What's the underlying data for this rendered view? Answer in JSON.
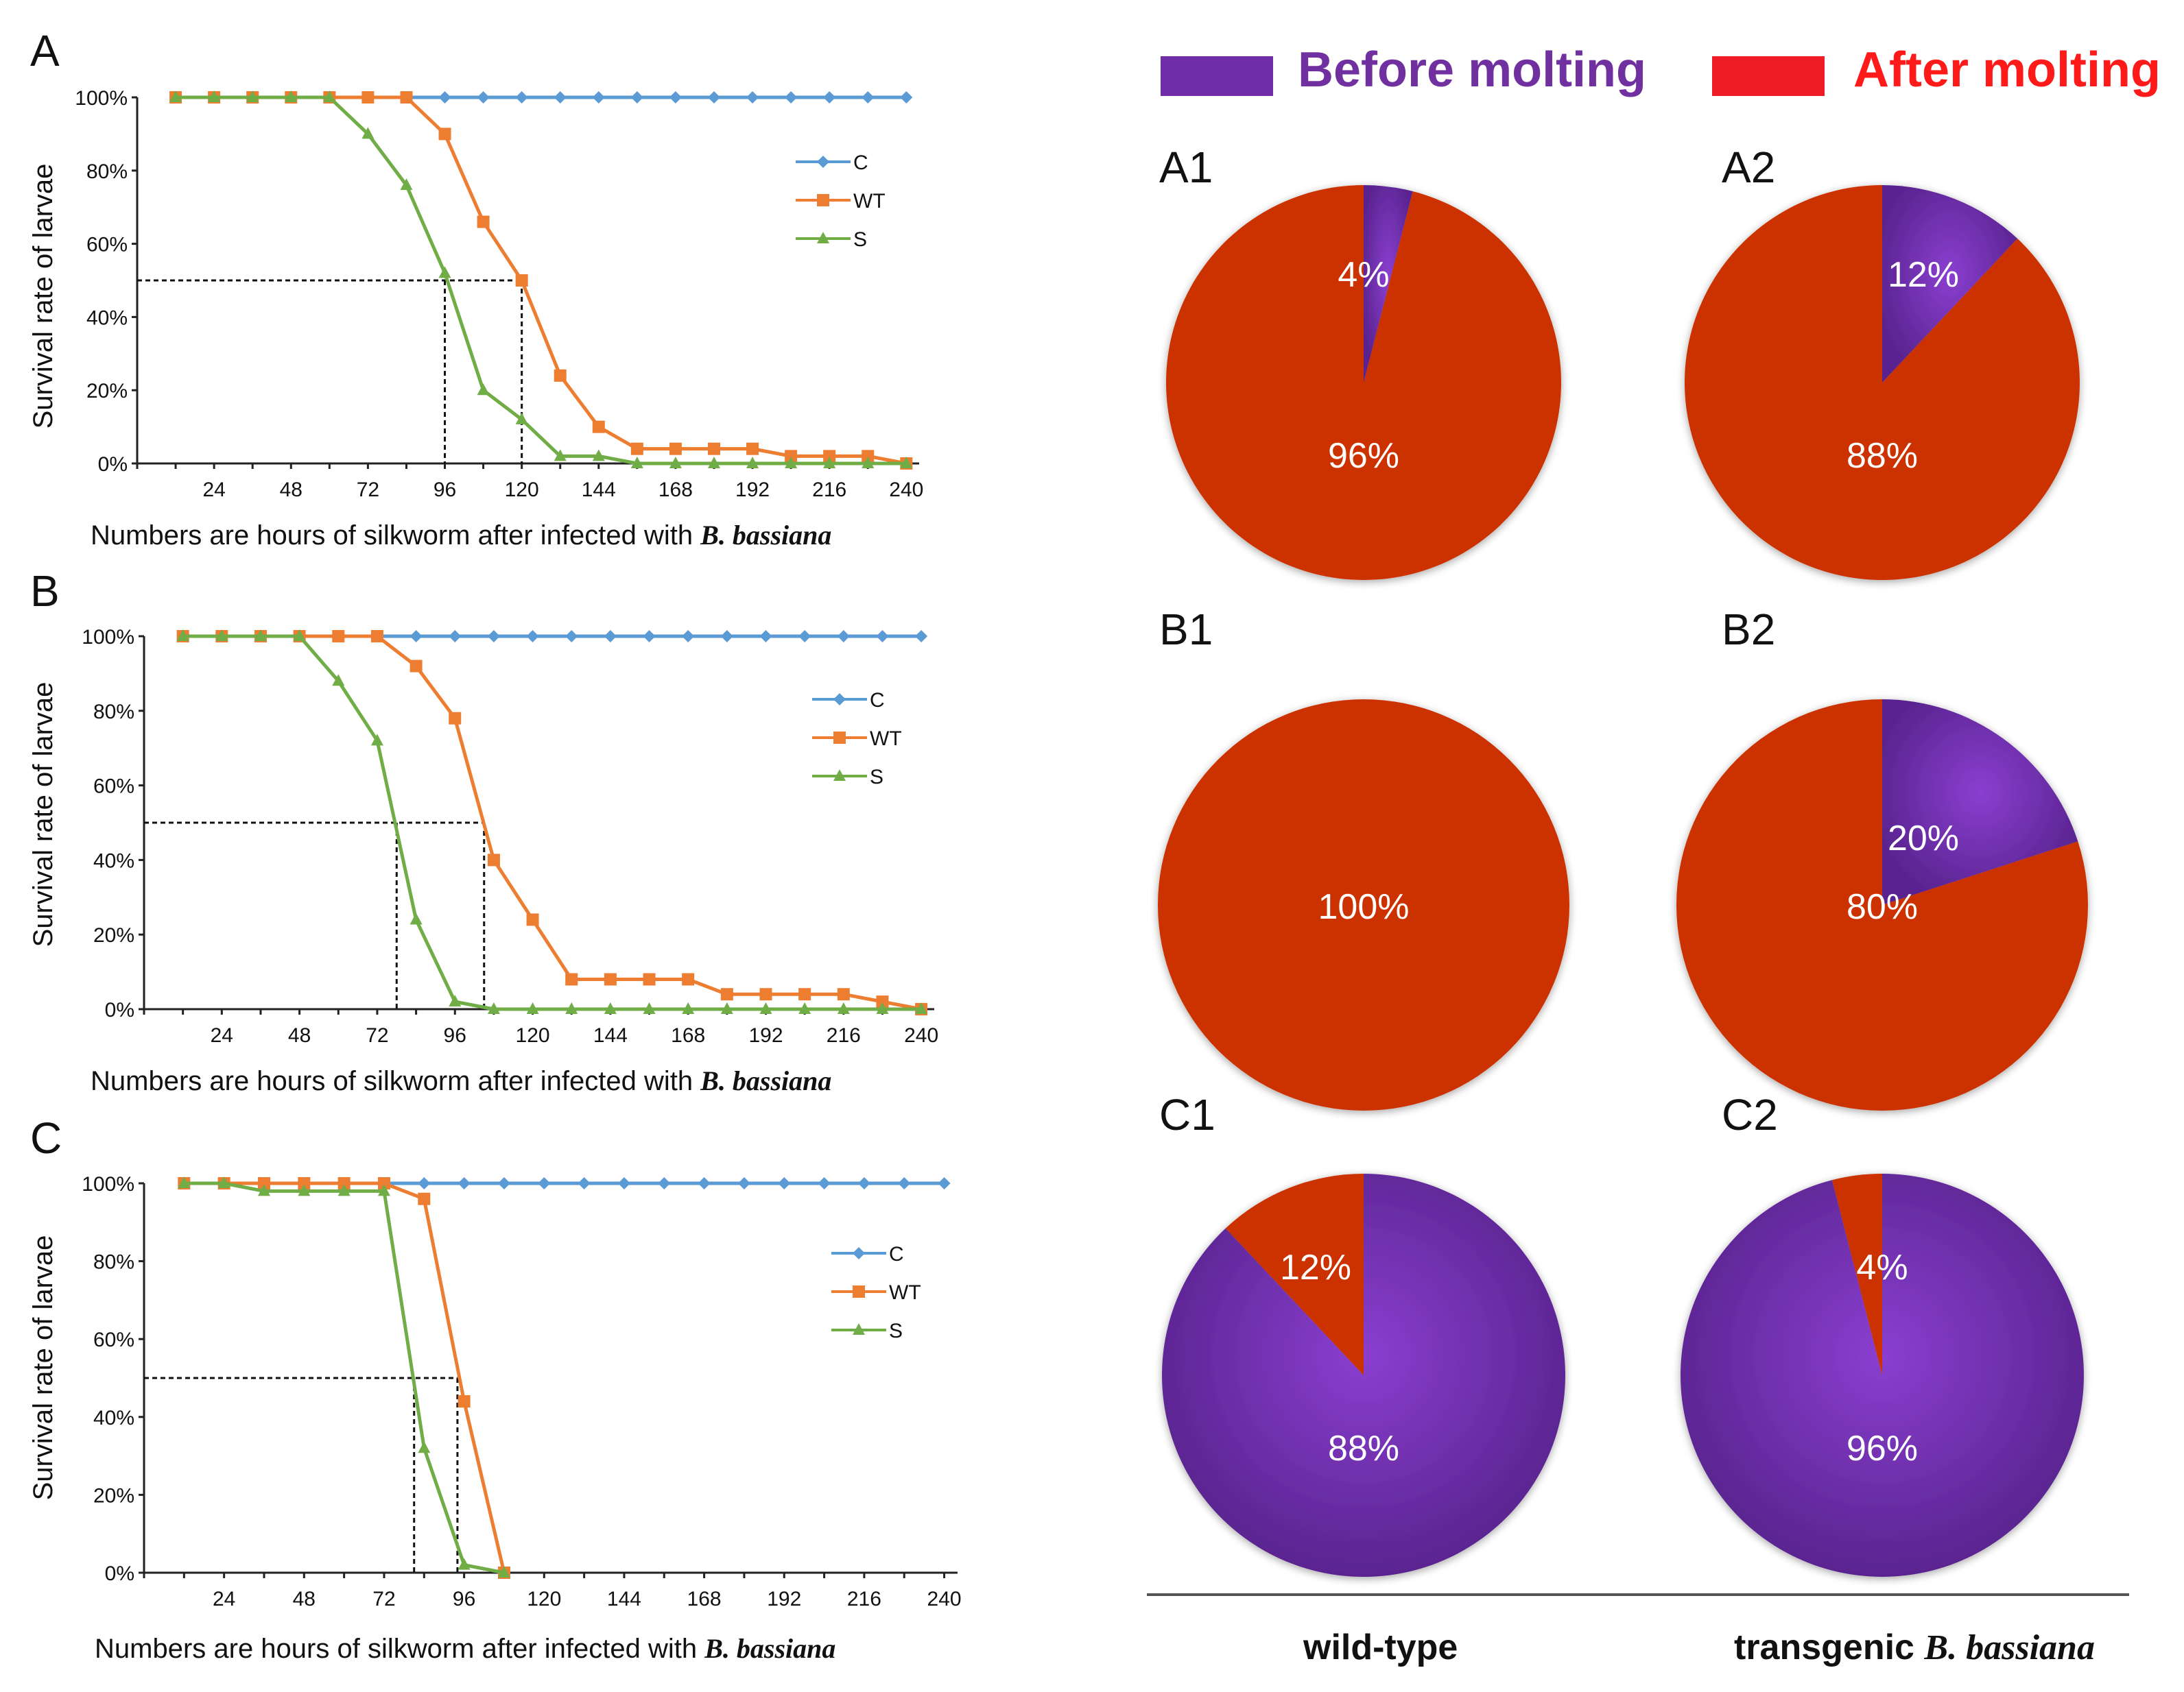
{
  "colors": {
    "C": "#5b9bd5",
    "WT": "#ed7d31",
    "S": "#70ad47",
    "before": "#6f2da8",
    "after": "#cc3300",
    "before_text": "#7030a0",
    "after_text": "#ff1a1a"
  },
  "legend_top": {
    "before": "Before molting",
    "after": "After molting"
  },
  "bottom": {
    "left": "wild-type",
    "right_plain": "transgenic ",
    "right_italic": "B. bassiana"
  },
  "chart_data": [
    {
      "type": "line",
      "panel": "A",
      "xlabel_plain": "Numbers are hours of silkworm after infected with ",
      "xlabel_italic": "B. bassiana",
      "ylabel": "Survival rate of larvae",
      "x_ticks": [
        "24",
        "48",
        "72",
        "96",
        "120",
        "144",
        "168",
        "192",
        "216",
        "240"
      ],
      "y_ticks": [
        "0%",
        "20%",
        "40%",
        "60%",
        "80%",
        "100%"
      ],
      "xlim": [
        0,
        244
      ],
      "ylim": [
        0,
        100
      ],
      "x": [
        12,
        24,
        36,
        48,
        60,
        72,
        84,
        96,
        108,
        120,
        132,
        144,
        156,
        168,
        180,
        192,
        204,
        216,
        228,
        240
      ],
      "series": [
        {
          "name": "C",
          "values": [
            100,
            100,
            100,
            100,
            100,
            100,
            100,
            100,
            100,
            100,
            100,
            100,
            100,
            100,
            100,
            100,
            100,
            100,
            100,
            100
          ]
        },
        {
          "name": "WT",
          "values": [
            100,
            100,
            100,
            100,
            100,
            100,
            100,
            90,
            66,
            50,
            24,
            10,
            4,
            4,
            4,
            4,
            2,
            2,
            2,
            0
          ]
        },
        {
          "name": "S",
          "values": [
            100,
            100,
            100,
            100,
            100,
            90,
            76,
            52,
            20,
            12,
            2,
            2,
            0,
            0,
            0,
            0,
            0,
            0,
            0,
            0
          ]
        }
      ],
      "lt50": [
        {
          "x": 96,
          "y": 50
        },
        {
          "x": 120,
          "y": 50
        }
      ]
    },
    {
      "type": "line",
      "panel": "B",
      "xlabel_plain": "Numbers are hours of silkworm after infected with ",
      "xlabel_italic": "B. bassiana",
      "ylabel": "Survival rate of larvae",
      "x_ticks": [
        "24",
        "48",
        "72",
        "96",
        "120",
        "144",
        "168",
        "192",
        "216",
        "240"
      ],
      "y_ticks": [
        "0%",
        "20%",
        "40%",
        "60%",
        "80%",
        "100%"
      ],
      "xlim": [
        0,
        244
      ],
      "ylim": [
        0,
        100
      ],
      "x": [
        12,
        24,
        36,
        48,
        60,
        72,
        84,
        96,
        108,
        120,
        132,
        144,
        156,
        168,
        180,
        192,
        204,
        216,
        228,
        240
      ],
      "series": [
        {
          "name": "C",
          "values": [
            100,
            100,
            100,
            100,
            100,
            100,
            100,
            100,
            100,
            100,
            100,
            100,
            100,
            100,
            100,
            100,
            100,
            100,
            100,
            100
          ]
        },
        {
          "name": "WT",
          "values": [
            100,
            100,
            100,
            100,
            100,
            100,
            92,
            78,
            40,
            24,
            8,
            8,
            8,
            8,
            4,
            4,
            4,
            4,
            2,
            0
          ]
        },
        {
          "name": "S",
          "values": [
            100,
            100,
            100,
            100,
            88,
            72,
            24,
            2,
            0,
            0,
            0,
            0,
            0,
            0,
            0,
            0,
            0,
            0,
            0,
            0
          ]
        }
      ],
      "lt50": [
        {
          "x": 78,
          "y": 50
        },
        {
          "x": 105,
          "y": 50
        }
      ]
    },
    {
      "type": "line",
      "panel": "C",
      "xlabel_plain": "Numbers are hours of silkworm after infected with ",
      "xlabel_italic": "B. bassiana",
      "ylabel": "Survival rate of larvae",
      "x_ticks": [
        "24",
        "48",
        "72",
        "96",
        "120",
        "144",
        "168",
        "192",
        "216",
        "240"
      ],
      "y_ticks": [
        "0%",
        "20%",
        "40%",
        "60%",
        "80%",
        "100%"
      ],
      "xlim": [
        0,
        244
      ],
      "ylim": [
        0,
        100
      ],
      "x_C": [
        12,
        24,
        36,
        48,
        60,
        72,
        84,
        96,
        108,
        120,
        132,
        144,
        156,
        168,
        180,
        192,
        204,
        216,
        228,
        240
      ],
      "series": [
        {
          "name": "C",
          "values": [
            100,
            100,
            100,
            100,
            100,
            100,
            100,
            100,
            100,
            100,
            100,
            100,
            100,
            100,
            100,
            100,
            100,
            100,
            100,
            100
          ]
        },
        {
          "name": "WT",
          "x": [
            12,
            24,
            36,
            48,
            60,
            72,
            84,
            96,
            108
          ],
          "values": [
            100,
            100,
            100,
            100,
            100,
            100,
            96,
            44,
            0
          ]
        },
        {
          "name": "S",
          "x": [
            12,
            24,
            36,
            48,
            60,
            72,
            84,
            96,
            108
          ],
          "values": [
            100,
            100,
            98,
            98,
            98,
            98,
            32,
            2,
            0
          ]
        }
      ],
      "lt50": [
        {
          "x": 81,
          "y": 50
        },
        {
          "x": 94,
          "y": 50
        }
      ]
    },
    {
      "type": "pie",
      "pies": [
        {
          "id": "A1",
          "before": 4,
          "after": 96
        },
        {
          "id": "A2",
          "before": 12,
          "after": 88
        },
        {
          "id": "B1",
          "before": 0,
          "after": 100
        },
        {
          "id": "B2",
          "before": 20,
          "after": 80
        },
        {
          "id": "C1",
          "before": 88,
          "after": 12
        },
        {
          "id": "C2",
          "before": 96,
          "after": 4
        }
      ],
      "labels": {
        "A1": {
          "small": "4%",
          "big": "96%"
        },
        "A2": {
          "small": "12%",
          "big": "88%"
        },
        "B1": {
          "small": "",
          "big": "100%"
        },
        "B2": {
          "small": "20%",
          "big": "80%"
        },
        "C1": {
          "small": "12%",
          "big": "88%"
        },
        "C2": {
          "small": "4%",
          "big": "96%"
        }
      }
    }
  ]
}
